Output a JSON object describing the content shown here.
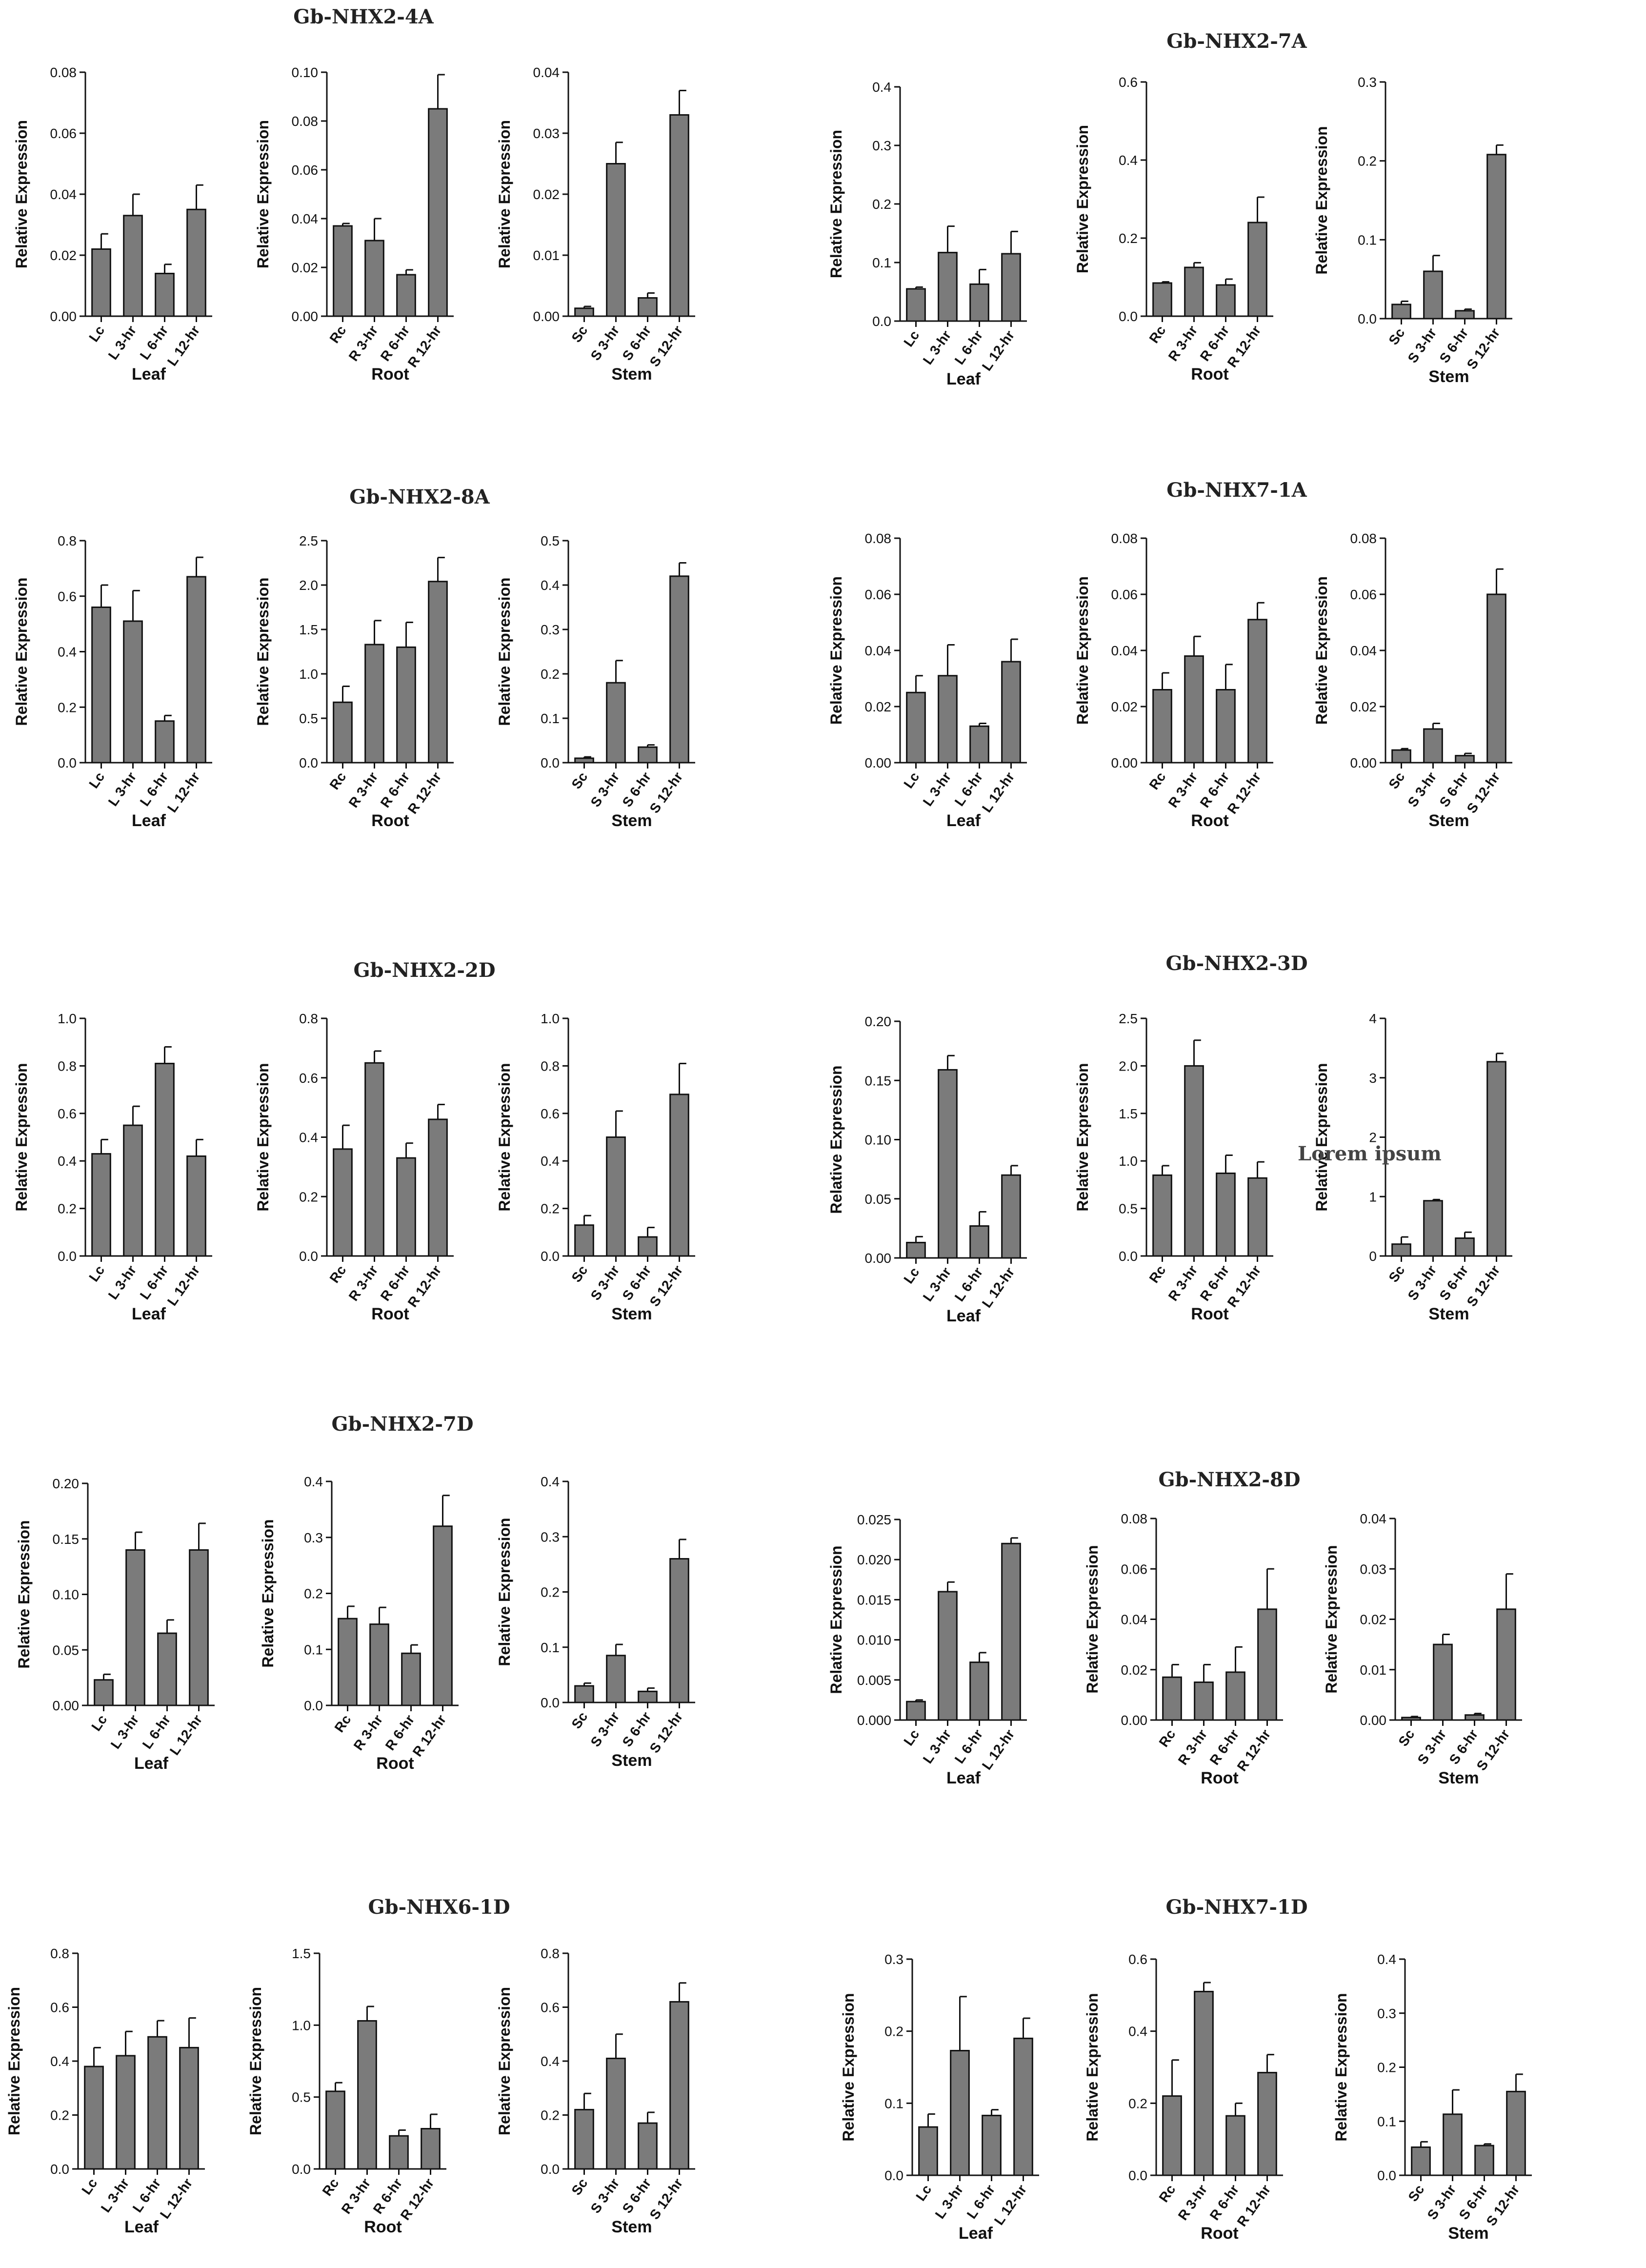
{
  "ylabel": "Relative Expression",
  "watermark": "Lorem ipsum",
  "chart_data": [
    {
      "type": "bar",
      "title": "Gb-NHX2-4A",
      "panels": [
        {
          "xlabel": "Leaf",
          "categories": [
            "Lc",
            "L 3-hr",
            "L 6-hr",
            "L 12-hr"
          ],
          "values": [
            0.022,
            0.033,
            0.014,
            0.035
          ],
          "errors": [
            0.005,
            0.007,
            0.003,
            0.008
          ],
          "ylim": [
            0,
            0.08
          ],
          "ticks": [
            "0.00",
            "0.02",
            "0.04",
            "0.06",
            "0.08"
          ]
        },
        {
          "xlabel": "Root",
          "categories": [
            "Rc",
            "R 3-hr",
            "R 6-hr",
            "R 12-hr"
          ],
          "values": [
            0.037,
            0.031,
            0.017,
            0.085
          ],
          "errors": [
            0.001,
            0.009,
            0.002,
            0.014
          ],
          "ylim": [
            0,
            0.1
          ],
          "ticks": [
            "0.00",
            "0.02",
            "0.04",
            "0.06",
            "0.08",
            "0.10"
          ]
        },
        {
          "xlabel": "Stem",
          "categories": [
            "Sc",
            "S 3-hr",
            "S 6-hr",
            "S 12-hr"
          ],
          "values": [
            0.0013,
            0.025,
            0.003,
            0.033
          ],
          "errors": [
            0.0003,
            0.0035,
            0.0008,
            0.004
          ],
          "ylim": [
            0,
            0.04
          ],
          "ticks": [
            "0.00",
            "0.01",
            "0.02",
            "0.03",
            "0.04"
          ]
        }
      ]
    },
    {
      "type": "bar",
      "title": "Gb-NHX2-7A",
      "panels": [
        {
          "xlabel": "Leaf",
          "categories": [
            "Lc",
            "L 3-hr",
            "L 6-hr",
            "L 12-hr"
          ],
          "values": [
            0.055,
            0.117,
            0.063,
            0.115
          ],
          "errors": [
            0.003,
            0.045,
            0.025,
            0.038
          ],
          "ylim": [
            0,
            0.4
          ],
          "ticks": [
            "0.0",
            "0.1",
            "0.2",
            "0.3",
            "0.4"
          ]
        },
        {
          "xlabel": "Root",
          "categories": [
            "Rc",
            "R 3-hr",
            "R 6-hr",
            "R 12-hr"
          ],
          "values": [
            0.085,
            0.125,
            0.08,
            0.24
          ],
          "errors": [
            0.003,
            0.012,
            0.015,
            0.065
          ],
          "ylim": [
            0,
            0.6
          ],
          "ticks": [
            "0.0",
            "0.2",
            "0.4",
            "0.6"
          ]
        },
        {
          "xlabel": "Stem",
          "categories": [
            "Sc",
            "S 3-hr",
            "S 6-hr",
            "S 12-hr"
          ],
          "values": [
            0.018,
            0.06,
            0.01,
            0.208
          ],
          "errors": [
            0.004,
            0.02,
            0.002,
            0.012
          ],
          "ylim": [
            0,
            0.3
          ],
          "ticks": [
            "0.0",
            "0.1",
            "0.2",
            "0.3"
          ]
        }
      ]
    },
    {
      "type": "bar",
      "title": "Gb-NHX2-8A",
      "panels": [
        {
          "xlabel": "Leaf",
          "categories": [
            "Lc",
            "L 3-hr",
            "L 6-hr",
            "L 12-hr"
          ],
          "values": [
            0.56,
            0.51,
            0.15,
            0.67
          ],
          "errors": [
            0.08,
            0.11,
            0.02,
            0.07
          ],
          "ylim": [
            0,
            0.8
          ],
          "ticks": [
            "0.0",
            "0.2",
            "0.4",
            "0.6",
            "0.8"
          ]
        },
        {
          "xlabel": "Root",
          "categories": [
            "Rc",
            "R 3-hr",
            "R 6-hr",
            "R 12-hr"
          ],
          "values": [
            0.68,
            1.33,
            1.3,
            2.04
          ],
          "errors": [
            0.18,
            0.27,
            0.28,
            0.27
          ],
          "ylim": [
            0,
            2.5
          ],
          "ticks": [
            "0.0",
            "0.5",
            "1.0",
            "1.5",
            "2.0",
            "2.5"
          ]
        },
        {
          "xlabel": "Stem",
          "categories": [
            "Sc",
            "S 3-hr",
            "S 6-hr",
            "S 12-hr"
          ],
          "values": [
            0.01,
            0.18,
            0.035,
            0.42
          ],
          "errors": [
            0.003,
            0.05,
            0.005,
            0.03
          ],
          "ylim": [
            0,
            0.5
          ],
          "ticks": [
            "0.0",
            "0.1",
            "0.2",
            "0.3",
            "0.4",
            "0.5"
          ]
        }
      ]
    },
    {
      "type": "bar",
      "title": "Gb-NHX7-1A",
      "panels": [
        {
          "xlabel": "Leaf",
          "categories": [
            "Lc",
            "L 3-hr",
            "L 6-hr",
            "L 12-hr"
          ],
          "values": [
            0.025,
            0.031,
            0.013,
            0.036
          ],
          "errors": [
            0.006,
            0.011,
            0.001,
            0.008
          ],
          "ylim": [
            0,
            0.08
          ],
          "ticks": [
            "0.00",
            "0.02",
            "0.04",
            "0.06",
            "0.08"
          ]
        },
        {
          "xlabel": "Root",
          "categories": [
            "Rc",
            "R 3-hr",
            "R 6-hr",
            "R 12-hr"
          ],
          "values": [
            0.026,
            0.038,
            0.026,
            0.051
          ],
          "errors": [
            0.006,
            0.007,
            0.009,
            0.006
          ],
          "ylim": [
            0,
            0.08
          ],
          "ticks": [
            "0.00",
            "0.02",
            "0.04",
            "0.06",
            "0.08"
          ]
        },
        {
          "xlabel": "Stem",
          "categories": [
            "Sc",
            "S 3-hr",
            "S 6-hr",
            "S 12-hr"
          ],
          "values": [
            0.0045,
            0.012,
            0.0025,
            0.06
          ],
          "errors": [
            0.0005,
            0.002,
            0.0008,
            0.009
          ],
          "ylim": [
            0,
            0.08
          ],
          "ticks": [
            "0.00",
            "0.02",
            "0.04",
            "0.06",
            "0.08"
          ]
        }
      ]
    },
    {
      "type": "bar",
      "title": "Gb-NHX2-2D",
      "panels": [
        {
          "xlabel": "Leaf",
          "categories": [
            "Lc",
            "L 3-hr",
            "L 6-hr",
            "L 12-hr"
          ],
          "values": [
            0.43,
            0.55,
            0.81,
            0.42
          ],
          "errors": [
            0.06,
            0.08,
            0.07,
            0.07
          ],
          "ylim": [
            0,
            1.0
          ],
          "ticks": [
            "0.0",
            "0.2",
            "0.4",
            "0.6",
            "0.8",
            "1.0"
          ]
        },
        {
          "xlabel": "Root",
          "categories": [
            "Rc",
            "R 3-hr",
            "R 6-hr",
            "R 12-hr"
          ],
          "values": [
            0.36,
            0.65,
            0.33,
            0.46
          ],
          "errors": [
            0.08,
            0.04,
            0.05,
            0.05
          ],
          "ylim": [
            0,
            0.8
          ],
          "ticks": [
            "0.0",
            "0.2",
            "0.4",
            "0.6",
            "0.8"
          ]
        },
        {
          "xlabel": "Stem",
          "categories": [
            "Sc",
            "S 3-hr",
            "S 6-hr",
            "S 12-hr"
          ],
          "values": [
            0.13,
            0.5,
            0.08,
            0.68
          ],
          "errors": [
            0.04,
            0.11,
            0.04,
            0.13
          ],
          "ylim": [
            0,
            1.0
          ],
          "ticks": [
            "0.0",
            "0.2",
            "0.4",
            "0.6",
            "0.8",
            "1.0"
          ]
        }
      ]
    },
    {
      "type": "bar",
      "title": "Gb-NHX2-3D",
      "panels": [
        {
          "xlabel": "Leaf",
          "categories": [
            "Lc",
            "L 3-hr",
            "L 6-hr",
            "L 12-hr"
          ],
          "values": [
            0.013,
            0.159,
            0.027,
            0.07
          ],
          "errors": [
            0.005,
            0.012,
            0.012,
            0.008
          ],
          "ylim": [
            0,
            0.2
          ],
          "ticks": [
            "0.00",
            "0.05",
            "0.10",
            "0.15",
            "0.20"
          ]
        },
        {
          "xlabel": "Root",
          "categories": [
            "Rc",
            "R 3-hr",
            "R 6-hr",
            "R 12-hr"
          ],
          "values": [
            0.85,
            2.0,
            0.87,
            0.82
          ],
          "errors": [
            0.1,
            0.27,
            0.19,
            0.17
          ],
          "ylim": [
            0,
            2.5
          ],
          "ticks": [
            "0.0",
            "0.5",
            "1.0",
            "1.5",
            "2.0",
            "2.5"
          ]
        },
        {
          "xlabel": "Stem",
          "categories": [
            "Sc",
            "S 3-hr",
            "S 6-hr",
            "S 12-hr"
          ],
          "values": [
            0.2,
            0.93,
            0.3,
            3.27
          ],
          "errors": [
            0.12,
            0.02,
            0.1,
            0.14
          ],
          "ylim": [
            0,
            4
          ],
          "ticks": [
            "0",
            "1",
            "2",
            "3",
            "4"
          ]
        }
      ]
    },
    {
      "type": "bar",
      "title": "Gb-NHX2-7D",
      "panels": [
        {
          "xlabel": "Leaf",
          "categories": [
            "Lc",
            "L 3-hr",
            "L 6-hr",
            "L 12-hr"
          ],
          "values": [
            0.023,
            0.14,
            0.065,
            0.14
          ],
          "errors": [
            0.005,
            0.016,
            0.012,
            0.024
          ],
          "ylim": [
            0,
            0.2
          ],
          "ticks": [
            "0.00",
            "0.05",
            "0.10",
            "0.15",
            "0.20"
          ]
        },
        {
          "xlabel": "Root",
          "categories": [
            "Rc",
            "R 3-hr",
            "R 6-hr",
            "R 12-hr"
          ],
          "values": [
            0.155,
            0.145,
            0.093,
            0.32
          ],
          "errors": [
            0.022,
            0.03,
            0.015,
            0.055
          ],
          "ylim": [
            0,
            0.4
          ],
          "ticks": [
            "0.0",
            "0.1",
            "0.2",
            "0.3",
            "0.4"
          ]
        },
        {
          "xlabel": "Stem",
          "categories": [
            "Sc",
            "S 3-hr",
            "S 6-hr",
            "S 12-hr"
          ],
          "values": [
            0.03,
            0.085,
            0.02,
            0.26
          ],
          "errors": [
            0.005,
            0.02,
            0.006,
            0.035
          ],
          "ylim": [
            0,
            0.4
          ],
          "ticks": [
            "0.0",
            "0.1",
            "0.2",
            "0.3",
            "0.4"
          ]
        }
      ]
    },
    {
      "type": "bar",
      "title": "Gb-NHX2-8D",
      "panels": [
        {
          "xlabel": "Leaf",
          "categories": [
            "Lc",
            "L 3-hr",
            "L 6-hr",
            "L 12-hr"
          ],
          "values": [
            0.0023,
            0.016,
            0.0072,
            0.022
          ],
          "errors": [
            0.0002,
            0.0012,
            0.0012,
            0.0007
          ],
          "ylim": [
            0,
            0.025
          ],
          "ticks": [
            "0.000",
            "0.005",
            "0.010",
            "0.015",
            "0.020",
            "0.025"
          ]
        },
        {
          "xlabel": "Root",
          "categories": [
            "Rc",
            "R 3-hr",
            "R 6-hr",
            "R 12-hr"
          ],
          "values": [
            0.017,
            0.015,
            0.019,
            0.044
          ],
          "errors": [
            0.005,
            0.007,
            0.01,
            0.016
          ],
          "ylim": [
            0,
            0.08
          ],
          "ticks": [
            "0.00",
            "0.02",
            "0.04",
            "0.06",
            "0.08"
          ]
        },
        {
          "xlabel": "Stem",
          "categories": [
            "Sc",
            "S 3-hr",
            "S 6-hr",
            "S 12-hr"
          ],
          "values": [
            0.0005,
            0.015,
            0.001,
            0.022
          ],
          "errors": [
            0.0002,
            0.002,
            0.0003,
            0.007
          ],
          "ylim": [
            0,
            0.04
          ],
          "ticks": [
            "0.00",
            "0.01",
            "0.02",
            "0.03",
            "0.04"
          ]
        }
      ]
    },
    {
      "type": "bar",
      "title": "Gb-NHX6-1D",
      "panels": [
        {
          "xlabel": "Leaf",
          "categories": [
            "Lc",
            "L 3-hr",
            "L 6-hr",
            "L 12-hr"
          ],
          "values": [
            0.38,
            0.42,
            0.49,
            0.45
          ],
          "errors": [
            0.07,
            0.09,
            0.06,
            0.11
          ],
          "ylim": [
            0,
            0.8
          ],
          "ticks": [
            "0.0",
            "0.2",
            "0.4",
            "0.6",
            "0.8"
          ]
        },
        {
          "xlabel": "Root",
          "categories": [
            "Rc",
            "R 3-hr",
            "R 6-hr",
            "R 12-hr"
          ],
          "values": [
            0.54,
            1.03,
            0.23,
            0.28
          ],
          "errors": [
            0.06,
            0.1,
            0.04,
            0.1
          ],
          "ylim": [
            0,
            1.5
          ],
          "ticks": [
            "0.0",
            "0.5",
            "1.0",
            "1.5"
          ]
        },
        {
          "xlabel": "Stem",
          "categories": [
            "Sc",
            "S 3-hr",
            "S 6-hr",
            "S 12-hr"
          ],
          "values": [
            0.22,
            0.41,
            0.17,
            0.62
          ],
          "errors": [
            0.06,
            0.09,
            0.04,
            0.07
          ],
          "ylim": [
            0,
            0.8
          ],
          "ticks": [
            "0.0",
            "0.2",
            "0.4",
            "0.6",
            "0.8"
          ]
        }
      ]
    },
    {
      "type": "bar",
      "title": "Gb-NHX7-1D",
      "panels": [
        {
          "xlabel": "Leaf",
          "categories": [
            "Lc",
            "L 3-hr",
            "L 6-hr",
            "L 12-hr"
          ],
          "values": [
            0.067,
            0.173,
            0.083,
            0.19
          ],
          "errors": [
            0.018,
            0.075,
            0.008,
            0.028
          ],
          "ylim": [
            0,
            0.3
          ],
          "ticks": [
            "0.0",
            "0.1",
            "0.2",
            "0.3"
          ]
        },
        {
          "xlabel": "Root",
          "categories": [
            "Rc",
            "R 3-hr",
            "R 6-hr",
            "R 12-hr"
          ],
          "values": [
            0.22,
            0.51,
            0.165,
            0.285
          ],
          "errors": [
            0.1,
            0.025,
            0.035,
            0.05
          ],
          "ylim": [
            0,
            0.6
          ],
          "ticks": [
            "0.0",
            "0.2",
            "0.4",
            "0.6"
          ]
        },
        {
          "xlabel": "Stem",
          "categories": [
            "Sc",
            "S 3-hr",
            "S 6-hr",
            "S 12-hr"
          ],
          "values": [
            0.052,
            0.113,
            0.055,
            0.155
          ],
          "errors": [
            0.01,
            0.045,
            0.003,
            0.032
          ],
          "ylim": [
            0,
            0.4
          ],
          "ticks": [
            "0.0",
            "0.1",
            "0.2",
            "0.3",
            "0.4"
          ]
        }
      ]
    }
  ]
}
